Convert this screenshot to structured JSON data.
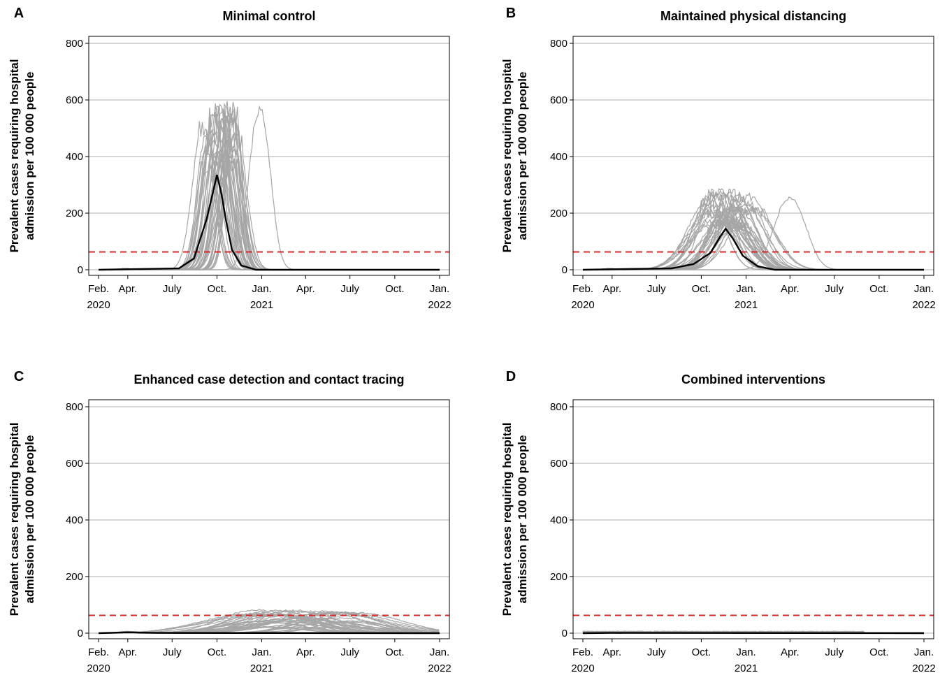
{
  "chart_data": [
    {
      "type": "line",
      "panel": "A",
      "title": "Minimal control",
      "ylabel_line1": "Prevalent cases requiring hospital",
      "ylabel_line2": "admission per 100 000 people",
      "ylim": [
        0,
        800
      ],
      "y_ticks": [
        0,
        200,
        400,
        600,
        800
      ],
      "x_ticks": [
        {
          "date": "2020-02-01",
          "label": "Feb.",
          "year": "2020"
        },
        {
          "date": "2020-04-01",
          "label": "Apr.",
          "year": ""
        },
        {
          "date": "2020-07-01",
          "label": "July",
          "year": ""
        },
        {
          "date": "2020-10-01",
          "label": "Oct.",
          "year": ""
        },
        {
          "date": "2021-01-01",
          "label": "Jan.",
          "year": "2021"
        },
        {
          "date": "2021-04-01",
          "label": "Apr.",
          "year": ""
        },
        {
          "date": "2021-07-01",
          "label": "July",
          "year": ""
        },
        {
          "date": "2021-10-01",
          "label": "Oct.",
          "year": ""
        },
        {
          "date": "2022-01-01",
          "label": "Jan.",
          "year": "2022"
        }
      ],
      "xlim": [
        "2020-02-01",
        "2022-01-01"
      ],
      "threshold": 63,
      "grid": true,
      "simulations": {
        "count": 40,
        "peak_range": [
          380,
          600
        ],
        "peak_date_range": [
          "2020-09-05",
          "2020-11-10"
        ],
        "outlier_peak_date": "2020-12-28",
        "outlier_peak": 590
      },
      "median": {
        "peak": 335,
        "peak_date": "2020-10-01",
        "points": [
          [
            "2020-02-01",
            0
          ],
          [
            "2020-07-15",
            5
          ],
          [
            "2020-08-15",
            40
          ],
          [
            "2020-09-10",
            180
          ],
          [
            "2020-09-25",
            290
          ],
          [
            "2020-10-01",
            335
          ],
          [
            "2020-10-10",
            270
          ],
          [
            "2020-10-20",
            170
          ],
          [
            "2020-11-01",
            70
          ],
          [
            "2020-11-20",
            15
          ],
          [
            "2020-12-20",
            0
          ],
          [
            "2022-01-01",
            0
          ]
        ]
      }
    },
    {
      "type": "line",
      "panel": "B",
      "title": "Maintained physical distancing",
      "ylabel_line1": "Prevalent cases requiring hospital",
      "ylabel_line2": "admission per 100 000 people",
      "ylim": [
        0,
        800
      ],
      "y_ticks": [
        0,
        200,
        400,
        600,
        800
      ],
      "x_ticks": [
        {
          "date": "2020-02-01",
          "label": "Feb.",
          "year": "2020"
        },
        {
          "date": "2020-04-01",
          "label": "Apr.",
          "year": ""
        },
        {
          "date": "2020-07-01",
          "label": "July",
          "year": ""
        },
        {
          "date": "2020-10-01",
          "label": "Oct.",
          "year": ""
        },
        {
          "date": "2021-01-01",
          "label": "Jan.",
          "year": "2021"
        },
        {
          "date": "2021-04-01",
          "label": "Apr.",
          "year": ""
        },
        {
          "date": "2021-07-01",
          "label": "July",
          "year": ""
        },
        {
          "date": "2021-10-01",
          "label": "Oct.",
          "year": ""
        },
        {
          "date": "2022-01-01",
          "label": "Jan.",
          "year": "2022"
        }
      ],
      "xlim": [
        "2020-02-01",
        "2022-01-01"
      ],
      "threshold": 63,
      "grid": true,
      "simulations": {
        "count": 40,
        "peak_range": [
          150,
          290
        ],
        "peak_date_range": [
          "2020-10-15",
          "2021-01-20"
        ],
        "outlier_peak_date": "2021-04-01",
        "outlier_peak": 260
      },
      "median": {
        "peak": 145,
        "peak_date": "2020-11-20",
        "points": [
          [
            "2020-02-01",
            0
          ],
          [
            "2020-08-01",
            5
          ],
          [
            "2020-09-15",
            20
          ],
          [
            "2020-10-20",
            60
          ],
          [
            "2020-11-10",
            120
          ],
          [
            "2020-11-20",
            145
          ],
          [
            "2020-12-05",
            110
          ],
          [
            "2020-12-25",
            50
          ],
          [
            "2021-01-25",
            12
          ],
          [
            "2021-03-01",
            0
          ],
          [
            "2022-01-01",
            0
          ]
        ]
      }
    },
    {
      "type": "line",
      "panel": "C",
      "title": "Enhanced case detection and contact tracing",
      "ylabel_line1": "Prevalent cases requiring hospital",
      "ylabel_line2": "admission per 100 000 people",
      "ylim": [
        0,
        800
      ],
      "y_ticks": [
        0,
        200,
        400,
        600,
        800
      ],
      "x_ticks": [
        {
          "date": "2020-02-01",
          "label": "Feb.",
          "year": "2020"
        },
        {
          "date": "2020-04-01",
          "label": "Apr.",
          "year": ""
        },
        {
          "date": "2020-07-01",
          "label": "July",
          "year": ""
        },
        {
          "date": "2020-10-01",
          "label": "Oct.",
          "year": ""
        },
        {
          "date": "2021-01-01",
          "label": "Jan.",
          "year": "2021"
        },
        {
          "date": "2021-04-01",
          "label": "Apr.",
          "year": ""
        },
        {
          "date": "2021-07-01",
          "label": "July",
          "year": ""
        },
        {
          "date": "2021-10-01",
          "label": "Oct.",
          "year": ""
        },
        {
          "date": "2022-01-01",
          "label": "Jan.",
          "year": "2022"
        }
      ],
      "xlim": [
        "2020-02-01",
        "2022-01-01"
      ],
      "threshold": 63,
      "grid": true,
      "simulations": {
        "count": 40,
        "peak_range": [
          20,
          85
        ],
        "peak_date_range": [
          "2020-12-15",
          "2021-07-15"
        ],
        "outlier_peak_date": "",
        "outlier_peak": 0
      },
      "median": {
        "peak": 3,
        "peak_date": "2020-04-01",
        "points": [
          [
            "2020-02-01",
            0
          ],
          [
            "2020-04-01",
            3
          ],
          [
            "2020-06-01",
            1
          ],
          [
            "2022-01-01",
            0
          ]
        ]
      }
    },
    {
      "type": "line",
      "panel": "D",
      "title": "Combined interventions",
      "ylabel_line1": "Prevalent cases requiring hospital",
      "ylabel_line2": "admission per 100 000 people",
      "ylim": [
        0,
        800
      ],
      "y_ticks": [
        0,
        200,
        400,
        600,
        800
      ],
      "x_ticks": [
        {
          "date": "2020-02-01",
          "label": "Feb.",
          "year": "2020"
        },
        {
          "date": "2020-04-01",
          "label": "Apr.",
          "year": ""
        },
        {
          "date": "2020-07-01",
          "label": "July",
          "year": ""
        },
        {
          "date": "2020-10-01",
          "label": "Oct.",
          "year": ""
        },
        {
          "date": "2021-01-01",
          "label": "Jan.",
          "year": "2021"
        },
        {
          "date": "2021-04-01",
          "label": "Apr.",
          "year": ""
        },
        {
          "date": "2021-07-01",
          "label": "July",
          "year": ""
        },
        {
          "date": "2021-10-01",
          "label": "Oct.",
          "year": ""
        },
        {
          "date": "2022-01-01",
          "label": "Jan.",
          "year": "2022"
        }
      ],
      "xlim": [
        "2020-02-01",
        "2022-01-01"
      ],
      "threshold": 63,
      "grid": true,
      "simulations": {
        "count": 30,
        "peak_range": [
          2,
          8
        ],
        "peak_date_range": [
          "2020-03-20",
          "2021-09-01"
        ],
        "outlier_peak_date": "",
        "outlier_peak": 0
      },
      "median": {
        "peak": 1,
        "peak_date": "2020-04-01",
        "points": [
          [
            "2020-02-01",
            0
          ],
          [
            "2020-04-01",
            1
          ],
          [
            "2022-01-01",
            0
          ]
        ]
      }
    }
  ],
  "colors": {
    "simulation": "#a6a6a6",
    "median": "#000000",
    "threshold": "#d62728",
    "grid": "#c8c8c8"
  }
}
